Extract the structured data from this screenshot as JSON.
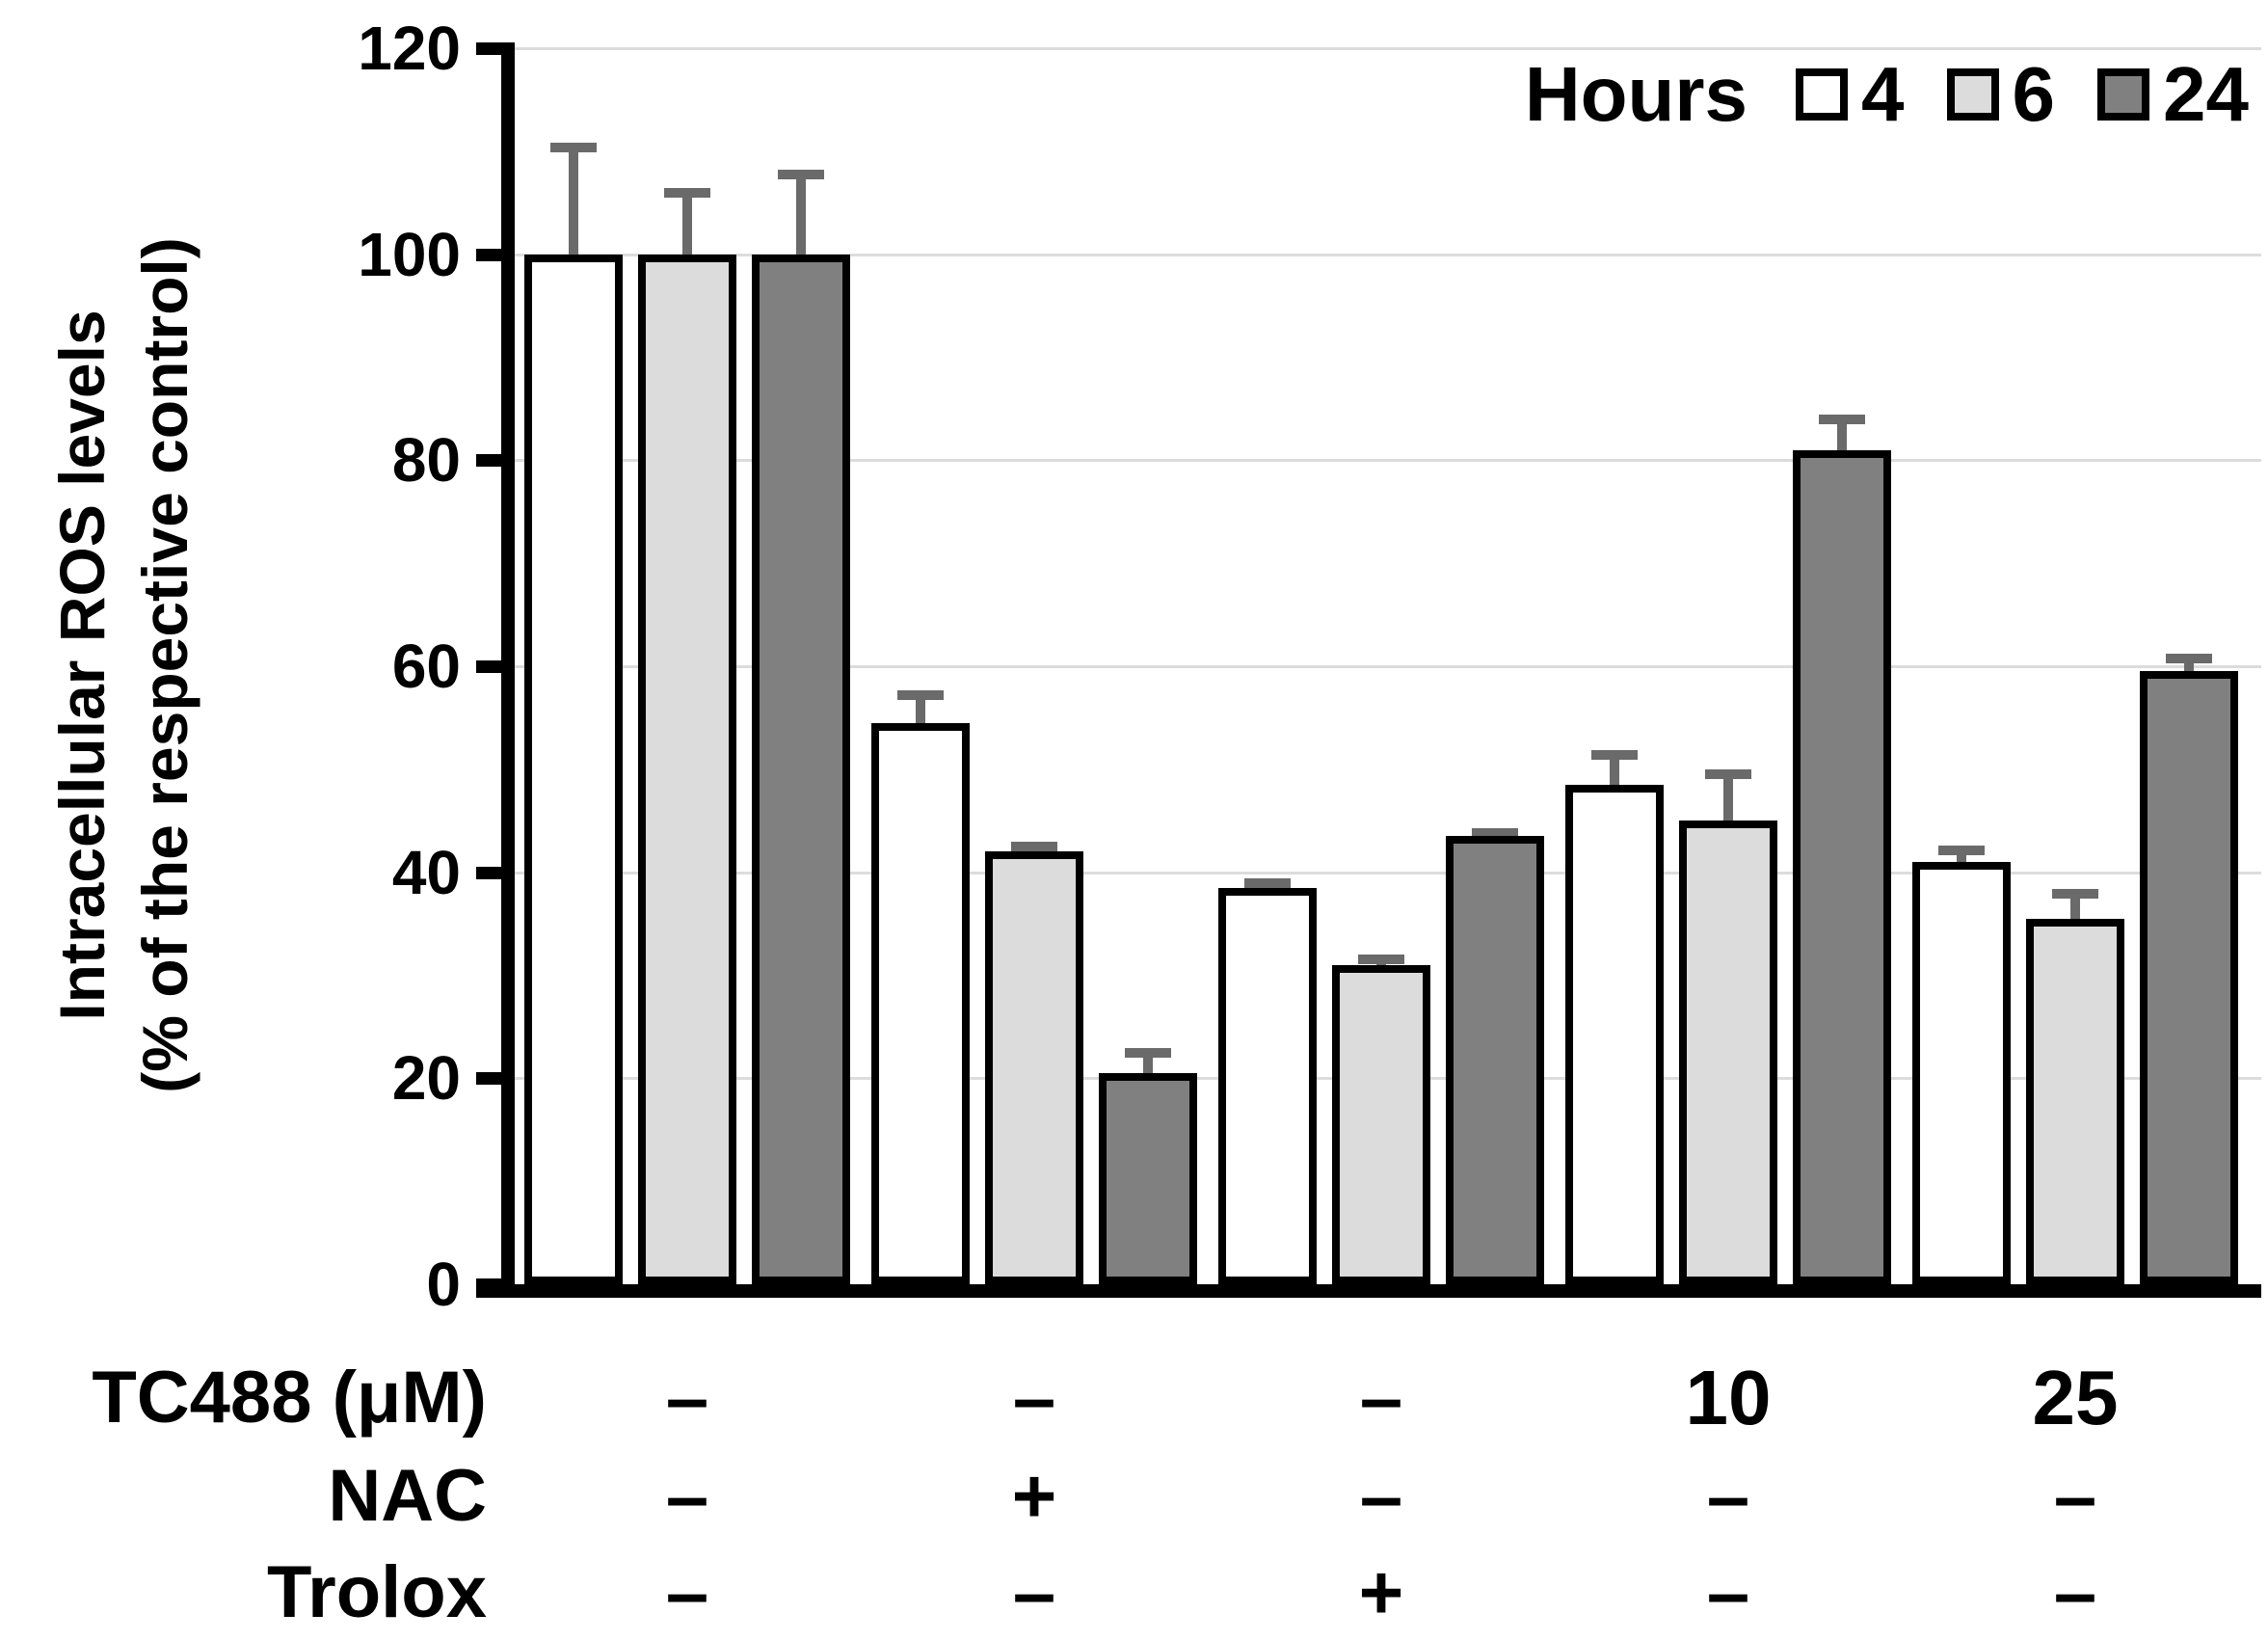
{
  "chart_data": {
    "type": "bar",
    "title": "",
    "ylabel_line1": "Intracellular ROS levels",
    "ylabel_line2": "(% of the respective control)",
    "ylim": [
      0,
      120
    ],
    "yticks": [
      0,
      20,
      40,
      60,
      80,
      100,
      120
    ],
    "grid": true,
    "legend_position": "top-right",
    "legend": {
      "title": "Hours",
      "entries": [
        {
          "label": "4",
          "color": "#ffffff"
        },
        {
          "label": "6",
          "color": "#dcdcdc"
        },
        {
          "label": "24",
          "color": "#808080"
        }
      ]
    },
    "series": [
      {
        "name": "4",
        "color": "#ffffff",
        "values": [
          100,
          54.5,
          38.5,
          48.5,
          41
        ],
        "errors": [
          10.8,
          3.2,
          0.9,
          3.4,
          1.6
        ]
      },
      {
        "name": "6",
        "color": "#dcdcdc",
        "values": [
          100,
          42,
          31,
          45,
          35.5
        ],
        "errors": [
          6.4,
          1.0,
          1.0,
          5.0,
          2.9
        ]
      },
      {
        "name": "24",
        "color": "#808080",
        "values": [
          100,
          20.5,
          43.5,
          81,
          59.5
        ],
        "errors": [
          8.2,
          2.4,
          0.8,
          3.4,
          1.7
        ]
      }
    ],
    "condition_rows": [
      {
        "label": "TC488 (μM)",
        "values": [
          "–",
          "–",
          "–",
          "10",
          "25"
        ]
      },
      {
        "label": "NAC",
        "values": [
          "–",
          "+",
          "–",
          "–",
          "–"
        ]
      },
      {
        "label": "Trolox",
        "values": [
          "–",
          "–",
          "+",
          "–",
          "–"
        ]
      }
    ],
    "colors": {
      "axis": "#000000",
      "gridline": "#dcdcdc",
      "error_bar": "#6a6a6a",
      "background": "#ffffff"
    }
  }
}
